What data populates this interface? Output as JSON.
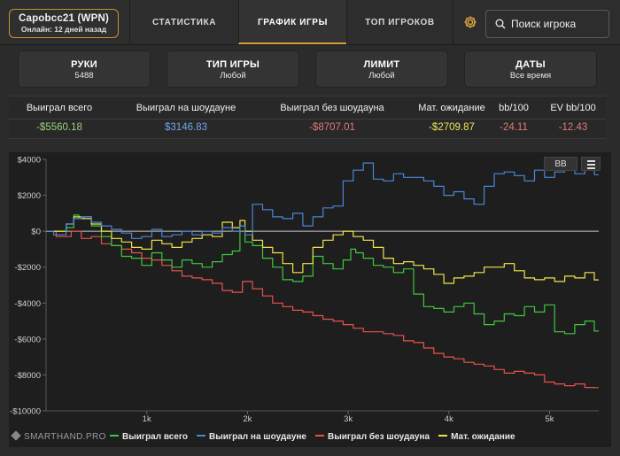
{
  "player": {
    "name": "Capobcc21 (WPN)",
    "online": "Онлайн: 12 дней назад"
  },
  "nav": {
    "tabs": [
      {
        "label": "СТАТИСТИКА"
      },
      {
        "label": "ГРАФИК ИГРЫ"
      },
      {
        "label": "ТОП ИГРОКОВ"
      }
    ],
    "active": 1
  },
  "search": {
    "placeholder": "Поиск игрока"
  },
  "filters": [
    {
      "title": "РУКИ",
      "value": "5488"
    },
    {
      "title": "ТИП ИГРЫ",
      "value": "Любой"
    },
    {
      "title": "ЛИМИТ",
      "value": "Любой"
    },
    {
      "title": "ДАТЫ",
      "value": "Все время"
    }
  ],
  "stats": [
    {
      "label": "Выиграл всего",
      "value": "-$5560.18",
      "color": "#9ccf7a"
    },
    {
      "label": "Выиграл на шоудауне",
      "value": "$3146.83",
      "color": "#6fa7e8"
    },
    {
      "label": "Выиграл без шоудауна",
      "value": "-$8707.01",
      "color": "#e07a78"
    },
    {
      "label": "Мат. ожидание",
      "value": "-$2709.87",
      "color": "#f0e45a"
    },
    {
      "label": "bb/100",
      "value": "-24.11",
      "color": "#e07a78"
    },
    {
      "label": "EV bb/100",
      "value": "-12.43",
      "color": "#e07a78"
    }
  ],
  "chart_buttons": {
    "bb": "BB"
  },
  "brand": "SMARTHAND.PRO",
  "chart_data": {
    "type": "line",
    "title": "",
    "xlabel": "",
    "ylabel": "",
    "xlim": [
      0,
      5488
    ],
    "ylim": [
      -10000,
      4000
    ],
    "y_ticks": [
      4000,
      2000,
      0,
      -2000,
      -4000,
      -6000,
      -8000,
      -10000
    ],
    "y_tick_labels": [
      "$4000",
      "$2000",
      "$0",
      "-$2000",
      "-$4000",
      "-$6000",
      "-$8000",
      "-$10000"
    ],
    "x_ticks": [
      1000,
      2000,
      3000,
      4000,
      5000
    ],
    "x_tick_labels": [
      "1k",
      "2k",
      "3k",
      "4k",
      "5k"
    ],
    "series": [
      {
        "name": "Выиграл всего",
        "color": "#3ec83e",
        "x": [
          0,
          150,
          250,
          300,
          350,
          400,
          500,
          600,
          700,
          800,
          900,
          1000,
          1100,
          1200,
          1300,
          1400,
          1500,
          1600,
          1700,
          1800,
          1900,
          1950,
          2000,
          2100,
          2200,
          2300,
          2400,
          2500,
          2600,
          2700,
          2800,
          2900,
          3000,
          3050,
          3100,
          3200,
          3300,
          3400,
          3500,
          3600,
          3700,
          3800,
          3900,
          4000,
          4100,
          4200,
          4300,
          4400,
          4500,
          4600,
          4700,
          4800,
          4900,
          5000,
          5100,
          5200,
          5300,
          5400,
          5488
        ],
        "y": [
          0,
          0,
          200,
          900,
          700,
          800,
          300,
          -300,
          -800,
          -1400,
          -1500,
          -1900,
          -1200,
          -1600,
          -2000,
          -1600,
          -1800,
          -2000,
          -1700,
          -1300,
          -1100,
          300,
          -600,
          -800,
          -1500,
          -2000,
          -2700,
          -2800,
          -2500,
          -1400,
          -1800,
          -2100,
          -1600,
          -1000,
          -1200,
          -1500,
          -1900,
          -2000,
          -2300,
          -2100,
          -3500,
          -4200,
          -4300,
          -4500,
          -4200,
          -4000,
          -4600,
          -5200,
          -5000,
          -4600,
          -4700,
          -4200,
          -4500,
          -4100,
          -5600,
          -5700,
          -5200,
          -5000,
          -5560
        ]
      },
      {
        "name": "Выиграл на шоудауне",
        "color": "#4a86d8",
        "x": [
          0,
          150,
          250,
          300,
          400,
          500,
          600,
          700,
          800,
          900,
          1000,
          1100,
          1200,
          1300,
          1400,
          1500,
          1600,
          1700,
          1800,
          1900,
          1950,
          2000,
          2100,
          2200,
          2300,
          2400,
          2500,
          2600,
          2700,
          2800,
          2900,
          3000,
          3100,
          3200,
          3300,
          3400,
          3500,
          3600,
          3700,
          3800,
          3900,
          4000,
          4100,
          4200,
          4300,
          4400,
          4500,
          4600,
          4700,
          4800,
          4900,
          5000,
          5100,
          5200,
          5300,
          5400,
          5488
        ],
        "y": [
          0,
          -200,
          400,
          700,
          800,
          500,
          300,
          100,
          -100,
          -400,
          -300,
          100,
          -300,
          -200,
          0,
          -200,
          0,
          -100,
          200,
          0,
          300,
          -200,
          1500,
          1200,
          800,
          700,
          1000,
          300,
          800,
          1300,
          1400,
          2800,
          3400,
          3800,
          2900,
          2800,
          3200,
          3000,
          3000,
          2800,
          2500,
          2000,
          2200,
          1800,
          1500,
          2500,
          3200,
          3300,
          3100,
          2800,
          3400,
          3000,
          3300,
          3500,
          3200,
          3400,
          3146
        ]
      },
      {
        "name": "Выиграл без шоудауна",
        "color": "#e8524e",
        "x": [
          0,
          200,
          300,
          400,
          500,
          600,
          700,
          800,
          900,
          1000,
          1100,
          1200,
          1300,
          1400,
          1500,
          1600,
          1700,
          1800,
          1900,
          2000,
          2100,
          2200,
          2300,
          2400,
          2500,
          2600,
          2700,
          2800,
          2900,
          3000,
          3100,
          3200,
          3300,
          3400,
          3500,
          3600,
          3700,
          3800,
          3900,
          4000,
          4100,
          4200,
          4300,
          4400,
          4500,
          4600,
          4700,
          4800,
          4900,
          5000,
          5100,
          5200,
          5300,
          5400,
          5488
        ],
        "y": [
          0,
          -300,
          0,
          -400,
          -300,
          -700,
          -800,
          -1000,
          -1200,
          -1500,
          -1600,
          -1900,
          -2200,
          -2500,
          -2600,
          -2700,
          -2900,
          -3300,
          -3400,
          -2800,
          -3200,
          -3600,
          -4000,
          -4200,
          -4400,
          -4500,
          -4700,
          -4900,
          -5000,
          -5200,
          -5400,
          -5600,
          -5600,
          -5700,
          -5800,
          -6100,
          -6200,
          -6500,
          -6800,
          -7000,
          -7100,
          -7300,
          -7400,
          -7500,
          -7700,
          -7900,
          -7800,
          -7900,
          -8000,
          -8400,
          -8500,
          -8600,
          -8500,
          -8700,
          -8707
        ]
      },
      {
        "name": "Мат. ожидание",
        "color": "#f0e44a",
        "x": [
          0,
          150,
          250,
          300,
          400,
          500,
          600,
          700,
          800,
          900,
          1000,
          1100,
          1200,
          1300,
          1400,
          1500,
          1600,
          1700,
          1800,
          1900,
          1950,
          2000,
          2100,
          2200,
          2300,
          2400,
          2500,
          2600,
          2700,
          2800,
          2900,
          3000,
          3100,
          3200,
          3300,
          3400,
          3500,
          3600,
          3700,
          3800,
          3900,
          4000,
          4100,
          4200,
          4300,
          4400,
          4500,
          4600,
          4700,
          4800,
          4900,
          5000,
          5100,
          5200,
          5300,
          5400,
          5488
        ],
        "y": [
          0,
          0,
          400,
          800,
          700,
          400,
          0,
          -400,
          -600,
          -900,
          -1000,
          -500,
          -700,
          -900,
          -600,
          -400,
          -200,
          -300,
          500,
          200,
          600,
          0,
          -500,
          -900,
          -1200,
          -1800,
          -2300,
          -1800,
          -900,
          -500,
          -200,
          0,
          -300,
          -500,
          -900,
          -1500,
          -1800,
          -1700,
          -1900,
          -2100,
          -2400,
          -2900,
          -2600,
          -2500,
          -2300,
          -2000,
          -2000,
          -1800,
          -2200,
          -2600,
          -2700,
          -2600,
          -2800,
          -2500,
          -2600,
          -2300,
          -2710
        ]
      }
    ]
  }
}
